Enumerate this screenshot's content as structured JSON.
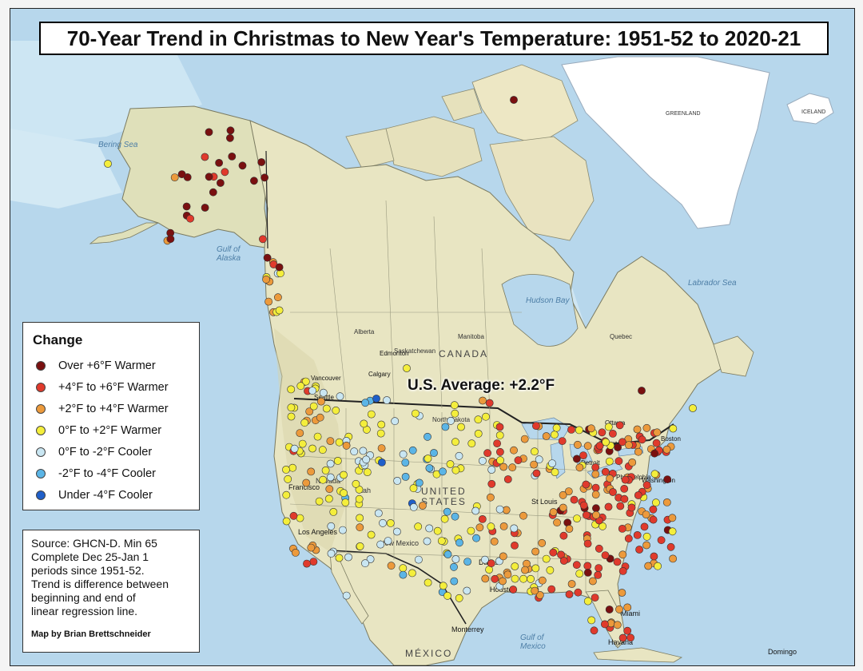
{
  "title": "70-Year Trend in Christmas to New Year's Temperature: 1951-52 to 2020-21",
  "annotation": "U.S. Average: +2.2°F",
  "legend": {
    "title": "Change",
    "items": [
      {
        "label": "Over +6°F Warmer",
        "color": "#7a1010"
      },
      {
        "label": "+4°F to +6°F Warmer",
        "color": "#e03a2c"
      },
      {
        "label": "+2°F to +4°F Warmer",
        "color": "#ec9a3c"
      },
      {
        "label": "0°F to +2°F Warmer",
        "color": "#f4ee3c"
      },
      {
        "label": "0°F to -2°F Cooler",
        "color": "#c9e6f2"
      },
      {
        "label": "-2°F to -4°F Cooler",
        "color": "#5bb5e6"
      },
      {
        "label": "Under -4°F Cooler",
        "color": "#1f5fc9"
      }
    ]
  },
  "source": "Source: GHCN-D. Min 65\nComplete Dec 25-Jan 1\nperiods since 1951-52.\nTrend is difference between\nbeginning and end of\nlinear regression line.",
  "credit": "Map by Brian Brettschneider",
  "places": {
    "canada": "CANADA",
    "mexico": "MÉXICO",
    "united_states": "UNITED STATES",
    "hudson_bay": "Hudson Bay",
    "gulf_of_mexico": "Gulf of Mexico",
    "labrador_sea": "Labrador Sea",
    "gulf_of_alaska": "Gulf of Alaska",
    "bering_sea": "Bering Sea",
    "greenland": "GREENLAND",
    "iceland": "ICELAND",
    "edmonton": "Edmonton",
    "calgary": "Calgary",
    "vancouver": "Vancouver",
    "seattle": "Seattle",
    "san_francisco": "Francisco",
    "los_angeles": "Los Angeles",
    "dallas": "Dallas",
    "houston": "Houston",
    "st_louis": "St Louis",
    "philadelphia": "Philadelphia",
    "boston": "Boston",
    "ottawa": "Ottawa",
    "toronto": "Toronto",
    "detroit": "Detroit",
    "miami": "Miami",
    "havana": "Havana",
    "monterrey": "Monterrey",
    "santo_domingo": "Domingo",
    "washington": "Washington",
    "new_mexico": "New Mexico",
    "north_dakota": "North Dakota",
    "nevada": "Nevada",
    "utah": "Utah",
    "quebec": "Quebec",
    "manitoba": "Manitoba",
    "saskatchewan": "Saskatchewan",
    "alberta": "Alberta"
  }
}
